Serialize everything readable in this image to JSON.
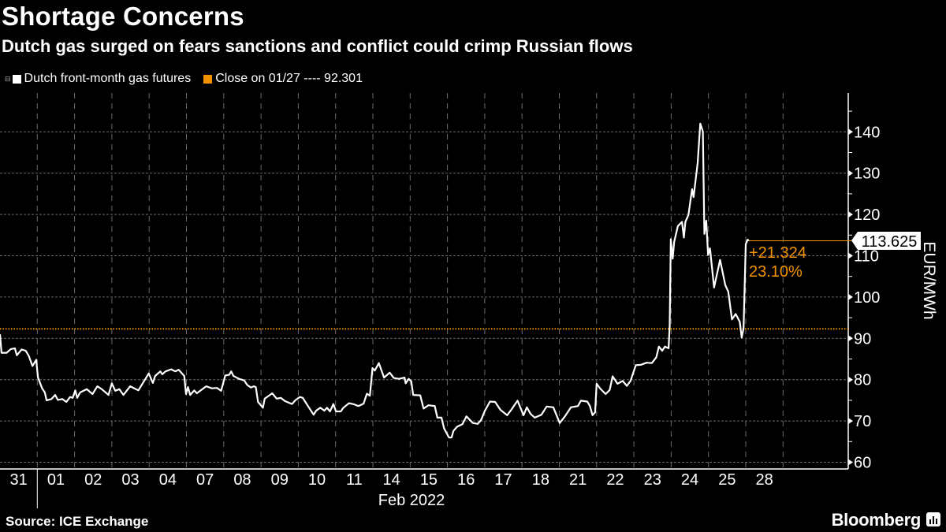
{
  "header": {
    "title": "Shortage Concerns",
    "subtitle": "Dutch gas surged on fears sanctions and conflict could crimp Russian flows"
  },
  "legend": [
    {
      "label": "Dutch front-month gas futures",
      "color": "#ffffff"
    },
    {
      "label": "Close on 01/27 ---- 92.301",
      "color": "#f39200"
    }
  ],
  "footer": {
    "source": "Source: ICE Exchange",
    "brand": "Bloomberg"
  },
  "chart_data": {
    "type": "line",
    "title": "Shortage Concerns",
    "ylabel": "EUR/MWh",
    "xlabel": "Feb 2022",
    "ylim": [
      60,
      148
    ],
    "yticks": [
      60,
      70,
      80,
      90,
      100,
      110,
      120,
      130,
      140
    ],
    "xlim": [
      0,
      22.7
    ],
    "categories": [
      "31",
      "01",
      "02",
      "03",
      "04",
      "07",
      "08",
      "09",
      "10",
      "11",
      "14",
      "15",
      "16",
      "17",
      "18",
      "21",
      "22",
      "23",
      "24",
      "25",
      "28"
    ],
    "month_label": "Feb 2022",
    "grid": true,
    "reference_line": {
      "label": "Close on 01/27",
      "value": 92.301,
      "color": "#f39200"
    },
    "last_value": {
      "value": "113.625",
      "change": "+21.324",
      "change_pct": "23.10%"
    },
    "series": [
      {
        "name": "Dutch front-month gas futures",
        "color": "#ffffff",
        "points": [
          [
            0,
            91.0
          ],
          [
            0.04,
            86.5
          ],
          [
            0.18,
            86.5
          ],
          [
            0.29,
            87.4
          ],
          [
            0.4,
            87.6
          ],
          [
            0.45,
            85.9
          ],
          [
            0.58,
            87.3
          ],
          [
            0.69,
            87.0
          ],
          [
            0.77,
            85.8
          ],
          [
            0.87,
            83.3
          ],
          [
            0.97,
            84.8
          ],
          [
            1.02,
            80.5
          ],
          [
            1.13,
            77.9
          ],
          [
            1.2,
            76.9
          ],
          [
            1.25,
            75.0
          ],
          [
            1.38,
            75.3
          ],
          [
            1.48,
            76.3
          ],
          [
            1.55,
            75.1
          ],
          [
            1.67,
            75.3
          ],
          [
            1.78,
            74.6
          ],
          [
            1.88,
            75.8
          ],
          [
            1.95,
            75.6
          ],
          [
            2.02,
            77.4
          ],
          [
            2.07,
            75.6
          ],
          [
            2.15,
            76.9
          ],
          [
            2.33,
            77.7
          ],
          [
            2.48,
            76.5
          ],
          [
            2.61,
            78.4
          ],
          [
            2.73,
            77.7
          ],
          [
            2.91,
            76.3
          ],
          [
            3.0,
            79.1
          ],
          [
            3.09,
            77.3
          ],
          [
            3.2,
            77.7
          ],
          [
            3.31,
            76.3
          ],
          [
            3.49,
            78.4
          ],
          [
            3.71,
            77.4
          ],
          [
            3.86,
            79.6
          ],
          [
            3.99,
            81.5
          ],
          [
            4.1,
            79.2
          ],
          [
            4.16,
            80.9
          ],
          [
            4.3,
            82.0
          ],
          [
            4.35,
            81.3
          ],
          [
            4.44,
            82.0
          ],
          [
            4.59,
            82.5
          ],
          [
            4.7,
            82.0
          ],
          [
            4.79,
            82.4
          ],
          [
            4.94,
            80.9
          ],
          [
            4.99,
            76.5
          ],
          [
            5.04,
            78.2
          ],
          [
            5.1,
            76.3
          ],
          [
            5.21,
            77.4
          ],
          [
            5.28,
            76.7
          ],
          [
            5.53,
            78.4
          ],
          [
            5.68,
            77.9
          ],
          [
            5.82,
            78.0
          ],
          [
            5.93,
            77.3
          ],
          [
            6.04,
            81.0
          ],
          [
            6.15,
            81.2
          ],
          [
            6.2,
            82.0
          ],
          [
            6.26,
            80.9
          ],
          [
            6.41,
            80.2
          ],
          [
            6.55,
            79.8
          ],
          [
            6.63,
            78.7
          ],
          [
            6.73,
            78.1
          ],
          [
            6.81,
            78.4
          ],
          [
            6.86,
            78.2
          ],
          [
            6.92,
            74.6
          ],
          [
            7.05,
            73.2
          ],
          [
            7.1,
            75.4
          ],
          [
            7.21,
            76.1
          ],
          [
            7.3,
            76.7
          ],
          [
            7.42,
            75.4
          ],
          [
            7.53,
            75.6
          ],
          [
            7.64,
            74.8
          ],
          [
            7.83,
            74.1
          ],
          [
            7.92,
            75.0
          ],
          [
            8.04,
            75.8
          ],
          [
            8.12,
            75.6
          ],
          [
            8.23,
            74.0
          ],
          [
            8.41,
            71.5
          ],
          [
            8.48,
            72.5
          ],
          [
            8.59,
            73.2
          ],
          [
            8.7,
            72.5
          ],
          [
            8.77,
            73.2
          ],
          [
            8.85,
            72.3
          ],
          [
            8.94,
            74.1
          ],
          [
            9.01,
            72.3
          ],
          [
            9.14,
            72.3
          ],
          [
            9.21,
            73.2
          ],
          [
            9.36,
            74.3
          ],
          [
            9.5,
            74.0
          ],
          [
            9.61,
            73.6
          ],
          [
            9.75,
            74.2
          ],
          [
            9.84,
            76.6
          ],
          [
            9.92,
            76.1
          ],
          [
            9.99,
            82.8
          ],
          [
            10.05,
            82.2
          ],
          [
            10.16,
            84.0
          ],
          [
            10.3,
            80.5
          ],
          [
            10.45,
            81.7
          ],
          [
            10.56,
            80.4
          ],
          [
            10.7,
            80.2
          ],
          [
            10.85,
            80.5
          ],
          [
            10.88,
            79.1
          ],
          [
            10.96,
            80.2
          ],
          [
            11.03,
            79.6
          ],
          [
            11.08,
            76.3
          ],
          [
            11.27,
            76.2
          ],
          [
            11.36,
            73.0
          ],
          [
            11.49,
            73.8
          ],
          [
            11.66,
            73.6
          ],
          [
            11.73,
            70.8
          ],
          [
            11.84,
            70.8
          ],
          [
            11.91,
            68.2
          ],
          [
            12.04,
            66.0
          ],
          [
            12.11,
            66.0
          ],
          [
            12.16,
            67.6
          ],
          [
            12.26,
            68.6
          ],
          [
            12.4,
            69.2
          ],
          [
            12.51,
            71.1
          ],
          [
            12.68,
            69.5
          ],
          [
            12.81,
            69.3
          ],
          [
            12.9,
            70.2
          ],
          [
            13.0,
            72.4
          ],
          [
            13.14,
            74.7
          ],
          [
            13.28,
            74.6
          ],
          [
            13.42,
            72.7
          ],
          [
            13.6,
            71.4
          ],
          [
            13.71,
            72.7
          ],
          [
            13.81,
            74.0
          ],
          [
            13.88,
            74.9
          ],
          [
            14.04,
            71.4
          ],
          [
            14.13,
            73.3
          ],
          [
            14.23,
            71.7
          ],
          [
            14.34,
            70.8
          ],
          [
            14.52,
            71.5
          ],
          [
            14.66,
            73.5
          ],
          [
            14.84,
            73.3
          ],
          [
            15.01,
            69.5
          ],
          [
            15.15,
            71.1
          ],
          [
            15.31,
            73.3
          ],
          [
            15.5,
            73.6
          ],
          [
            15.58,
            74.9
          ],
          [
            15.75,
            74.7
          ],
          [
            15.82,
            73.6
          ],
          [
            15.89,
            71.4
          ],
          [
            15.96,
            72.1
          ],
          [
            16.0,
            79.0
          ],
          [
            16.1,
            77.8
          ],
          [
            16.24,
            76.5
          ],
          [
            16.35,
            77.5
          ],
          [
            16.43,
            80.8
          ],
          [
            16.56,
            79.0
          ],
          [
            16.7,
            79.7
          ],
          [
            16.81,
            78.5
          ],
          [
            16.91,
            79.7
          ],
          [
            17.05,
            83.5
          ],
          [
            17.19,
            83.6
          ],
          [
            17.34,
            84.1
          ],
          [
            17.48,
            84.0
          ],
          [
            17.6,
            85.4
          ],
          [
            17.67,
            88.0
          ],
          [
            17.76,
            87.0
          ],
          [
            17.83,
            88.0
          ],
          [
            17.93,
            87.6
          ],
          [
            17.96,
            93.0
          ],
          [
            17.99,
            114.0
          ],
          [
            18.04,
            109.3
          ],
          [
            18.08,
            113.4
          ],
          [
            18.18,
            117.2
          ],
          [
            18.29,
            118.2
          ],
          [
            18.34,
            114.4
          ],
          [
            18.38,
            118.2
          ],
          [
            18.46,
            119.8
          ],
          [
            18.56,
            126.1
          ],
          [
            18.6,
            124.2
          ],
          [
            18.71,
            132.5
          ],
          [
            18.78,
            142.0
          ],
          [
            18.85,
            140.1
          ],
          [
            18.89,
            115.3
          ],
          [
            18.94,
            118.5
          ],
          [
            18.99,
            110.2
          ],
          [
            19.04,
            111.8
          ],
          [
            19.15,
            102.3
          ],
          [
            19.31,
            109.0
          ],
          [
            19.45,
            102.9
          ],
          [
            19.53,
            101.3
          ],
          [
            19.63,
            94.6
          ],
          [
            19.73,
            95.9
          ],
          [
            19.84,
            94.0
          ],
          [
            19.89,
            90.2
          ],
          [
            19.94,
            92.4
          ],
          [
            20.0,
            112.8
          ],
          [
            20.05,
            113.9
          ],
          [
            20.08,
            113.625
          ]
        ]
      }
    ]
  }
}
